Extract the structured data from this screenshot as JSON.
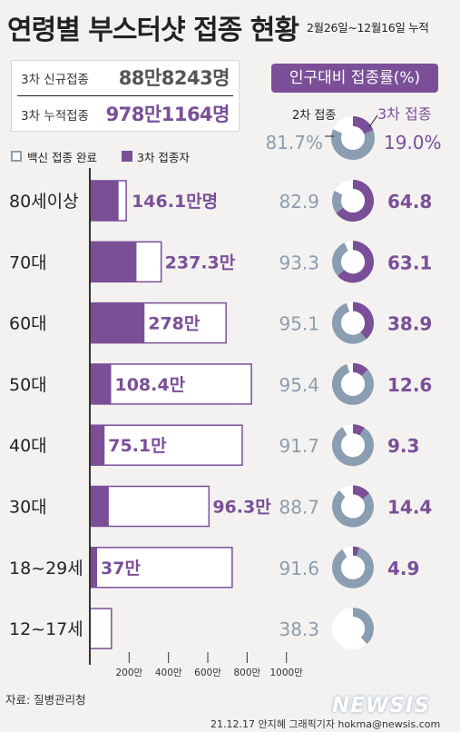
{
  "title": "연령별 부스터샷 접종 현황",
  "period": "2월26일~12월16일 누적",
  "stats": [
    {
      "label": "3차 신규접종",
      "value": "88만8243명"
    },
    {
      "label": "3차 누적접종",
      "value": "978만1164명"
    }
  ],
  "rate_header": "인구대비 접종률(%)",
  "legend": {
    "complete": "백신 접종 완료",
    "third": "3차 접종자"
  },
  "donut_legend": {
    "second_label": "2차 접종",
    "third_label": "3차 접종",
    "second_value": "81.7%",
    "third_value": "19.0%"
  },
  "overall": {
    "second_rate": 81.7,
    "third_rate": 19.0
  },
  "colors": {
    "purple": "#7a4f98",
    "gray_blue": "#8b9db0",
    "white": "#ffffff",
    "axis": "#333333"
  },
  "chart_data": {
    "type": "bar",
    "unit": "만",
    "x_ticks": [
      "200만",
      "400만",
      "600만",
      "800만",
      "1000만"
    ],
    "x_tick_values": [
      200,
      400,
      600,
      800,
      1000
    ],
    "groups": [
      {
        "age": "80세이상",
        "complete": 185,
        "third": 146.1,
        "third_label": "146.1만명",
        "second_rate": "82.9",
        "third_rate": "64.8"
      },
      {
        "age": "70대",
        "complete": 363,
        "third": 237.3,
        "third_label": "237.3만",
        "second_rate": "93.3",
        "third_rate": "63.1"
      },
      {
        "age": "60대",
        "complete": 693,
        "third": 278,
        "third_label": "278만",
        "second_rate": "95.1",
        "third_rate": "38.9"
      },
      {
        "age": "50대",
        "complete": 822,
        "third": 108.4,
        "third_label": "108.4만",
        "second_rate": "95.4",
        "third_rate": "12.6"
      },
      {
        "age": "40대",
        "complete": 775,
        "third": 75.1,
        "third_label": "75.1만",
        "second_rate": "91.7",
        "third_rate": "9.3"
      },
      {
        "age": "30대",
        "complete": 606,
        "third": 96.3,
        "third_label": "96.3만",
        "second_rate": "88.7",
        "third_rate": "14.4"
      },
      {
        "age": "18~29세",
        "complete": 724,
        "third": 37,
        "third_label": "37만",
        "second_rate": "91.6",
        "third_rate": "4.9"
      },
      {
        "age": "12~17세",
        "complete": 110,
        "third": 0,
        "third_label": "",
        "second_rate": "38.3",
        "third_rate": ""
      }
    ]
  },
  "footer": {
    "source": "자료: 질병관리청",
    "credit": "21.12.17 안지혜 그래픽기자 hokma@newsis.com",
    "watermark": "NEWSIS"
  }
}
